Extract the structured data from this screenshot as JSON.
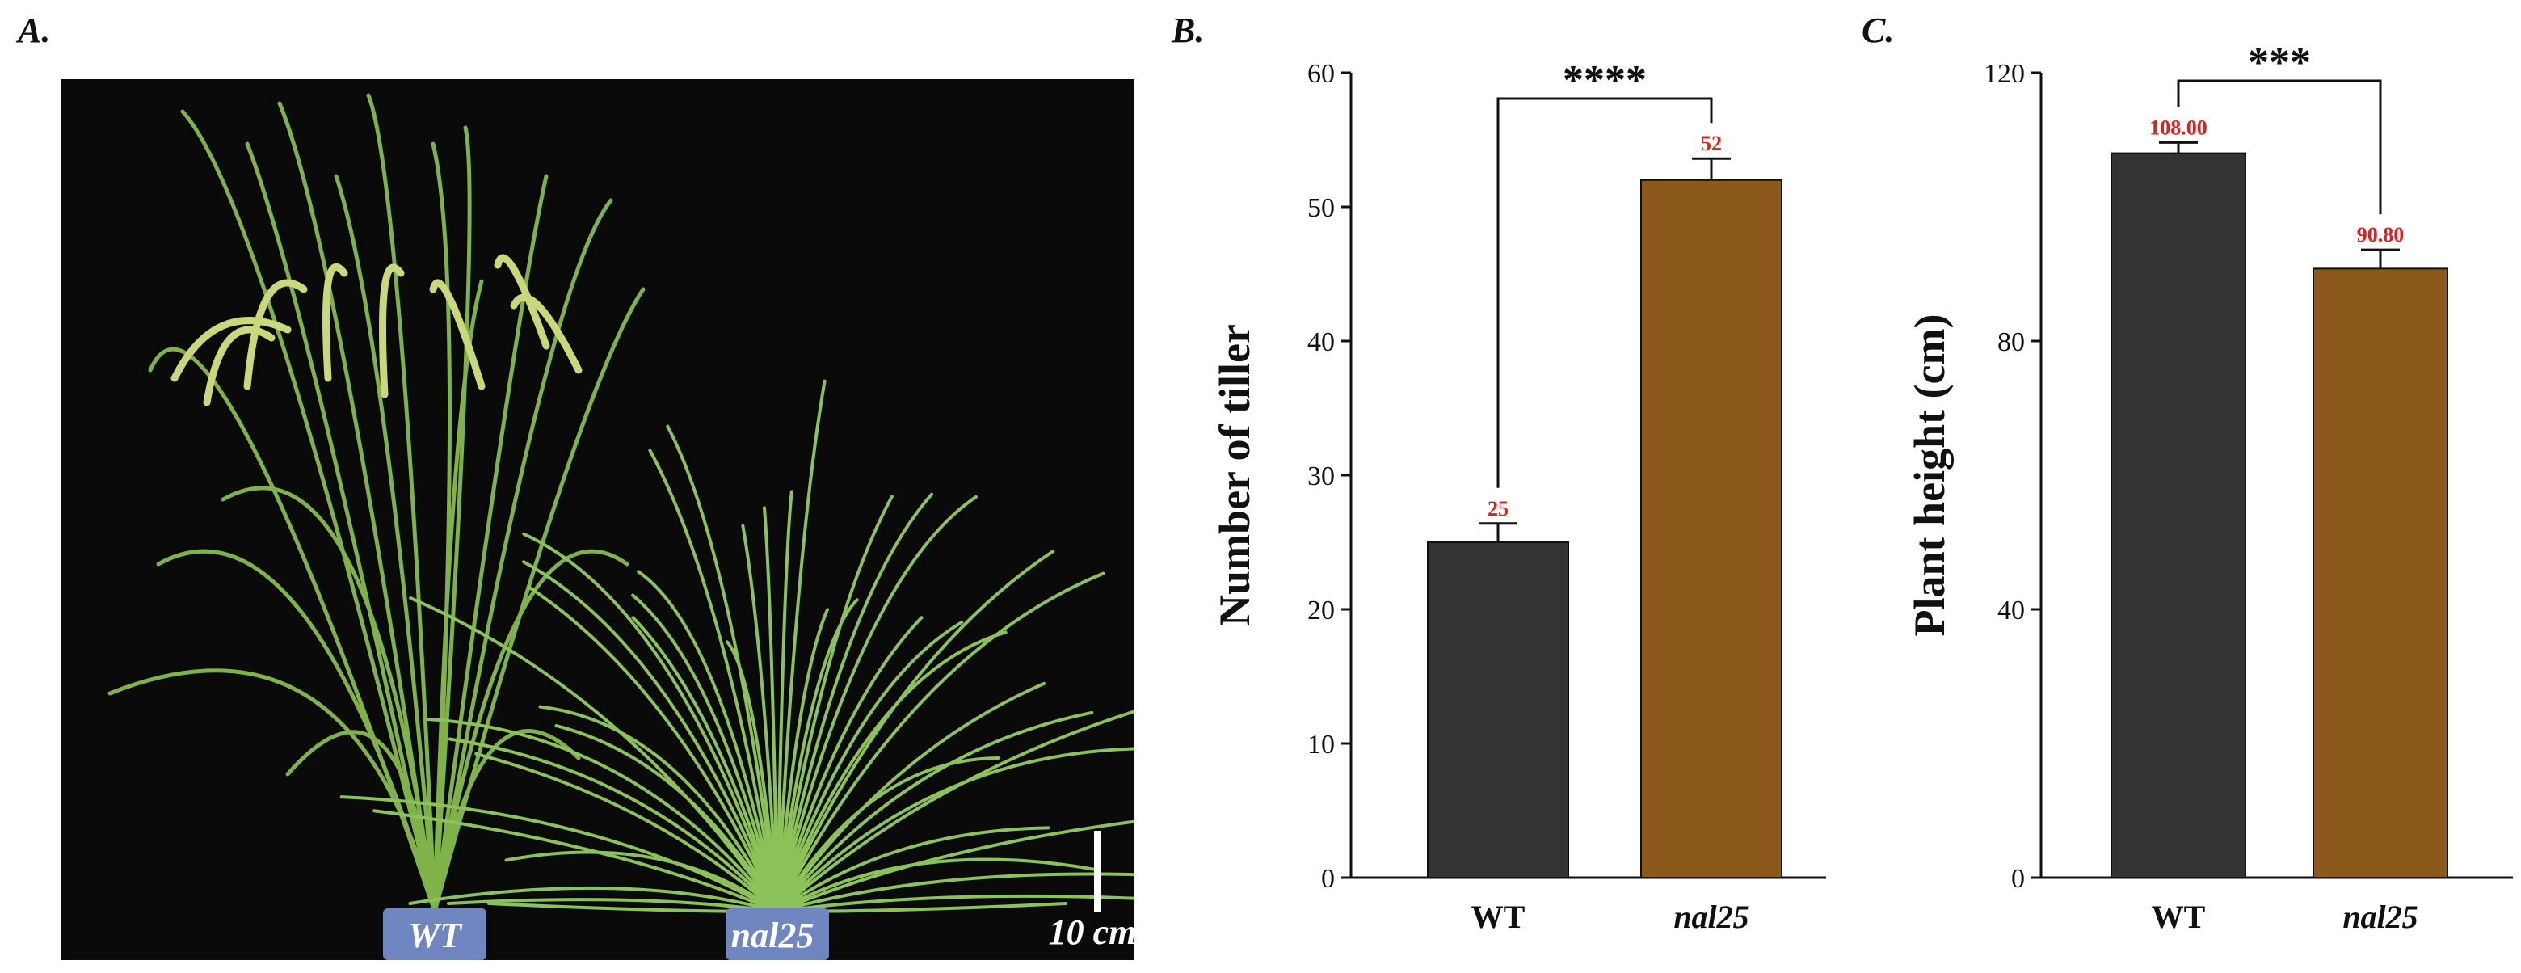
{
  "panels": {
    "a_label": "A.",
    "b_label": "B.",
    "c_label": "C."
  },
  "photo": {
    "labels": {
      "left_pot": "WT",
      "right_pot": "nal25",
      "scale_bar": "10 cm"
    },
    "description_colors": {
      "background": "#0a0a0a",
      "plant": "#7fb34a",
      "pot": "#6f86c0"
    }
  },
  "colors": {
    "wt_bar": "#333333",
    "nal25_bar": "#8b5a1a",
    "value_label": "#e02020",
    "axis": "#111111"
  },
  "chart_data": [
    {
      "type": "bar",
      "title": "",
      "xlabel": "",
      "ylabel": "Number of tiller",
      "categories": [
        "WT",
        "nal25"
      ],
      "values": [
        25,
        52
      ],
      "errors": [
        1.4,
        1.6
      ],
      "value_labels": [
        "25",
        "52"
      ],
      "ylim": [
        0,
        60
      ],
      "yticks": [
        0,
        10,
        20,
        30,
        40,
        50,
        60
      ],
      "significance": "****",
      "legend": "none"
    },
    {
      "type": "bar",
      "title": "",
      "xlabel": "",
      "ylabel": "Plant height (cm)",
      "categories": [
        "WT",
        "nal25"
      ],
      "values": [
        108.0,
        90.8
      ],
      "errors": [
        1.6,
        2.8
      ],
      "value_labels": [
        "108.00",
        "90.80"
      ],
      "ylim": [
        0,
        120
      ],
      "yticks": [
        0,
        40,
        80,
        120
      ],
      "significance": "***",
      "legend": "none"
    }
  ]
}
